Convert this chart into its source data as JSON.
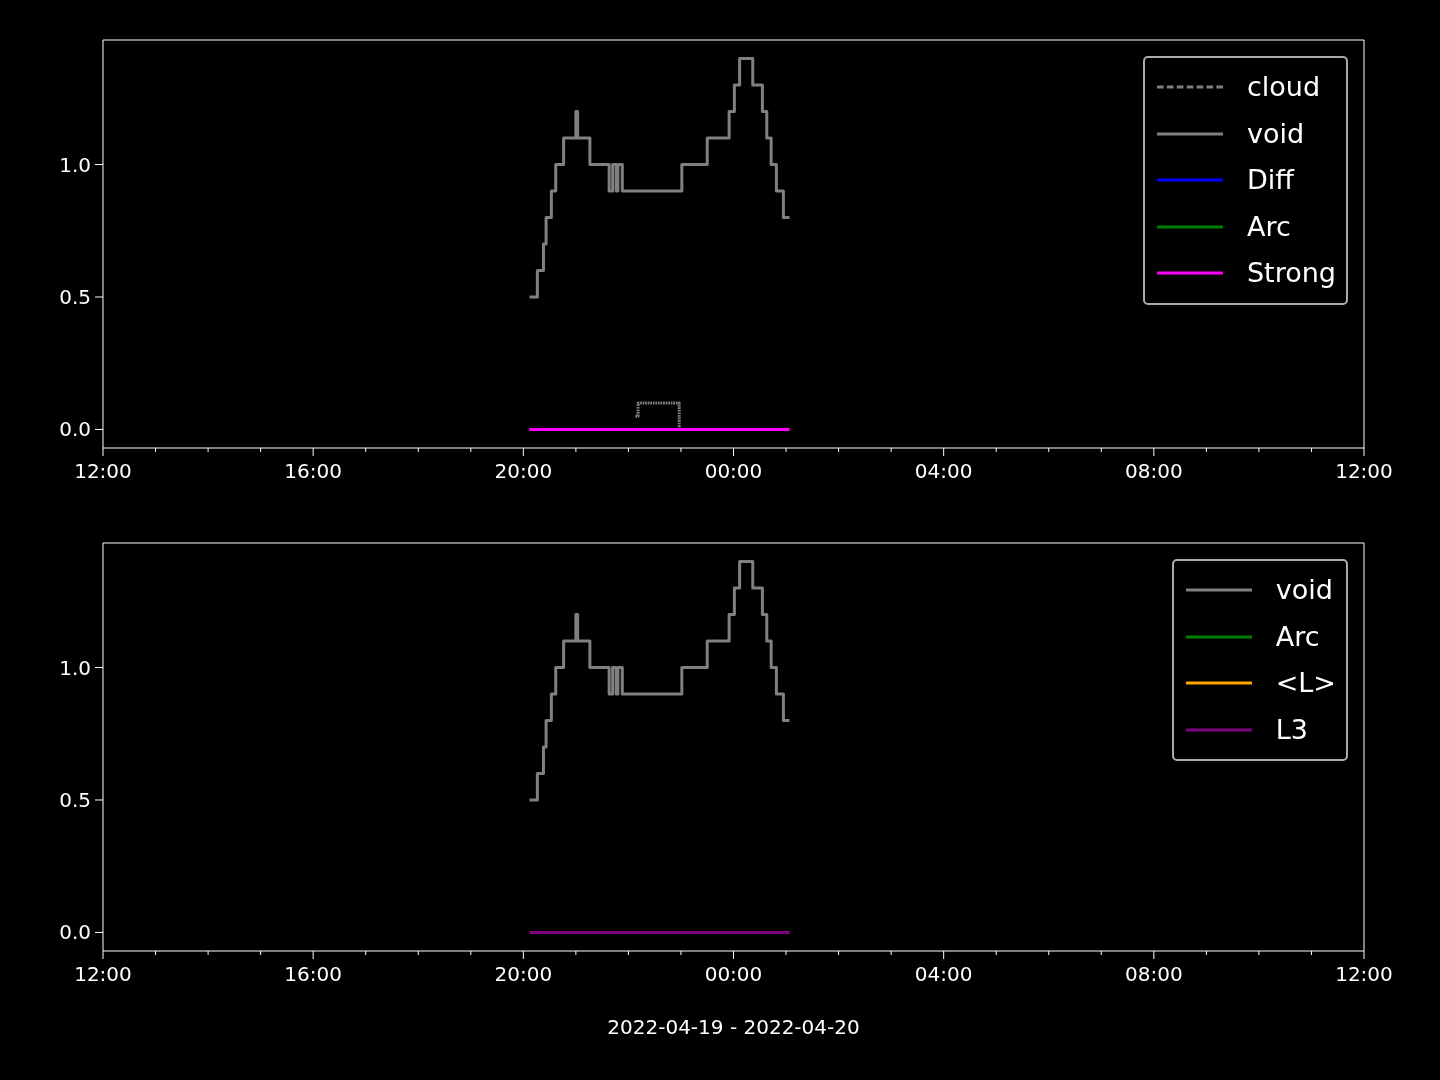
{
  "chart_data": [
    {
      "type": "step",
      "xlim": [
        "2022-04-19T12:00",
        "2022-04-20T12:00"
      ],
      "ylim": [
        -0.07,
        1.47
      ],
      "xticks": [
        {
          "value": "2022-04-19T12:00",
          "label": "12:00"
        },
        {
          "value": "2022-04-19T13:00",
          "label": null
        },
        {
          "value": "2022-04-19T14:00",
          "label": null
        },
        {
          "value": "2022-04-19T15:00",
          "label": null
        },
        {
          "value": "2022-04-19T16:00",
          "label": "16:00"
        },
        {
          "value": "2022-04-19T17:00",
          "label": null
        },
        {
          "value": "2022-04-19T18:00",
          "label": null
        },
        {
          "value": "2022-04-19T19:00",
          "label": null
        },
        {
          "value": "2022-04-19T20:00",
          "label": "20:00"
        },
        {
          "value": "2022-04-19T21:00",
          "label": null
        },
        {
          "value": "2022-04-19T22:00",
          "label": null
        },
        {
          "value": "2022-04-19T23:00",
          "label": null
        },
        {
          "value": "2022-04-20T00:00",
          "label": "00:00"
        },
        {
          "value": "2022-04-20T01:00",
          "label": null
        },
        {
          "value": "2022-04-20T02:00",
          "label": null
        },
        {
          "value": "2022-04-20T03:00",
          "label": null
        },
        {
          "value": "2022-04-20T04:00",
          "label": "04:00"
        },
        {
          "value": "2022-04-20T05:00",
          "label": null
        },
        {
          "value": "2022-04-20T06:00",
          "label": null
        },
        {
          "value": "2022-04-20T07:00",
          "label": null
        },
        {
          "value": "2022-04-20T08:00",
          "label": "08:00"
        },
        {
          "value": "2022-04-20T09:00",
          "label": null
        },
        {
          "value": "2022-04-20T10:00",
          "label": null
        },
        {
          "value": "2022-04-20T11:00",
          "label": null
        },
        {
          "value": "2022-04-20T12:00",
          "label": "12:00"
        }
      ],
      "yticks": [
        {
          "value": 0,
          "label": "0.0"
        },
        {
          "value": 0.5,
          "label": "0.5"
        },
        {
          "value": 1,
          "label": "1.0"
        }
      ],
      "grid": false,
      "legend": "top right",
      "marker": "none",
      "series": [
        {
          "name": "cloud",
          "color": "#808080",
          "line_style": "dashed",
          "x": [
            "2022-04-19T22:08",
            "2022-04-19T22:11",
            "2022-04-19T22:58"
          ],
          "values": [
            0.05,
            0.1,
            0
          ]
        },
        {
          "name": "void",
          "color": "#808080",
          "x": [
            "2022-04-19T20:07",
            "2022-04-19T20:16",
            "2022-04-19T20:23",
            "2022-04-19T20:26",
            "2022-04-19T20:32",
            "2022-04-19T20:37",
            "2022-04-19T20:46",
            "2022-04-19T21:00",
            "2022-04-19T21:02",
            "2022-04-19T21:16",
            "2022-04-19T21:38",
            "2022-04-19T21:42",
            "2022-04-19T21:46",
            "2022-04-19T21:48",
            "2022-04-19T21:53",
            "2022-04-19T23:01",
            "2022-04-19T23:30",
            "2022-04-19T23:33",
            "2022-04-19T23:55",
            "2022-04-20T00:01",
            "2022-04-20T00:07",
            "2022-04-20T00:22",
            "2022-04-20T00:33",
            "2022-04-20T00:38",
            "2022-04-20T00:43",
            "2022-04-20T00:49",
            "2022-04-20T00:57",
            "2022-04-20T01:04"
          ],
          "values": [
            0.5,
            0.6,
            0.7,
            0.8,
            0.9,
            1.0,
            1.1,
            1.2,
            1.1,
            1.0,
            0.9,
            1.0,
            0.9,
            1.0,
            0.9,
            1.0,
            1.1,
            1.1,
            1.2,
            1.3,
            1.4,
            1.3,
            1.2,
            1.1,
            1.0,
            0.9,
            0.8,
            0.8
          ]
        },
        {
          "name": "Diff",
          "color": "#0000ff"
        },
        {
          "name": "Arc",
          "color": "#008000"
        },
        {
          "name": "Strong",
          "color": "#ff00ff",
          "x": [
            "2022-04-19T20:07",
            "2022-04-20T01:04"
          ],
          "values": [
            0,
            0
          ]
        }
      ]
    },
    {
      "type": "step",
      "xlim": [
        "2022-04-19T12:00",
        "2022-04-20T12:00"
      ],
      "ylim": [
        -0.07,
        1.47
      ],
      "xlabel": "2022-04-19 - 2022-04-20",
      "xticks": [
        {
          "value": "2022-04-19T12:00",
          "label": "12:00"
        },
        {
          "value": "2022-04-19T13:00",
          "label": null
        },
        {
          "value": "2022-04-19T14:00",
          "label": null
        },
        {
          "value": "2022-04-19T15:00",
          "label": null
        },
        {
          "value": "2022-04-19T16:00",
          "label": "16:00"
        },
        {
          "value": "2022-04-19T17:00",
          "label": null
        },
        {
          "value": "2022-04-19T18:00",
          "label": null
        },
        {
          "value": "2022-04-19T19:00",
          "label": null
        },
        {
          "value": "2022-04-19T20:00",
          "label": "20:00"
        },
        {
          "value": "2022-04-19T21:00",
          "label": null
        },
        {
          "value": "2022-04-19T22:00",
          "label": null
        },
        {
          "value": "2022-04-19T23:00",
          "label": null
        },
        {
          "value": "2022-04-20T00:00",
          "label": "00:00"
        },
        {
          "value": "2022-04-20T01:00",
          "label": null
        },
        {
          "value": "2022-04-20T02:00",
          "label": null
        },
        {
          "value": "2022-04-20T03:00",
          "label": null
        },
        {
          "value": "2022-04-20T04:00",
          "label": "04:00"
        },
        {
          "value": "2022-04-20T05:00",
          "label": null
        },
        {
          "value": "2022-04-20T06:00",
          "label": null
        },
        {
          "value": "2022-04-20T07:00",
          "label": null
        },
        {
          "value": "2022-04-20T08:00",
          "label": "08:00"
        },
        {
          "value": "2022-04-20T09:00",
          "label": null
        },
        {
          "value": "2022-04-20T10:00",
          "label": null
        },
        {
          "value": "2022-04-20T11:00",
          "label": null
        },
        {
          "value": "2022-04-20T12:00",
          "label": "12:00"
        }
      ],
      "yticks": [
        {
          "value": 0,
          "label": "0.0"
        },
        {
          "value": 0.5,
          "label": "0.5"
        },
        {
          "value": 1,
          "label": "1.0"
        }
      ],
      "grid": false,
      "legend": "top right",
      "marker": "none",
      "series": [
        {
          "name": "void",
          "color": "#808080",
          "x": [
            "2022-04-19T20:07",
            "2022-04-19T20:16",
            "2022-04-19T20:23",
            "2022-04-19T20:26",
            "2022-04-19T20:32",
            "2022-04-19T20:37",
            "2022-04-19T20:46",
            "2022-04-19T21:00",
            "2022-04-19T21:02",
            "2022-04-19T21:16",
            "2022-04-19T21:38",
            "2022-04-19T21:42",
            "2022-04-19T21:46",
            "2022-04-19T21:48",
            "2022-04-19T21:53",
            "2022-04-19T23:01",
            "2022-04-19T23:30",
            "2022-04-19T23:33",
            "2022-04-19T23:55",
            "2022-04-20T00:01",
            "2022-04-20T00:07",
            "2022-04-20T00:22",
            "2022-04-20T00:33",
            "2022-04-20T00:38",
            "2022-04-20T00:43",
            "2022-04-20T00:49",
            "2022-04-20T00:57",
            "2022-04-20T01:04"
          ],
          "values": [
            0.5,
            0.6,
            0.7,
            0.8,
            0.9,
            1.0,
            1.1,
            1.2,
            1.1,
            1.0,
            0.9,
            1.0,
            0.9,
            1.0,
            0.9,
            1.0,
            1.1,
            1.1,
            1.2,
            1.3,
            1.4,
            1.3,
            1.2,
            1.1,
            1.0,
            0.9,
            0.8,
            0.8
          ]
        },
        {
          "name": "Arc",
          "color": "#008000"
        },
        {
          "name": "<L>",
          "color": "#ffa500"
        },
        {
          "name": "L3",
          "color": "#800080",
          "x": [
            "2022-04-19T20:07",
            "2022-04-20T01:04"
          ],
          "values": [
            0,
            0
          ]
        }
      ]
    }
  ]
}
